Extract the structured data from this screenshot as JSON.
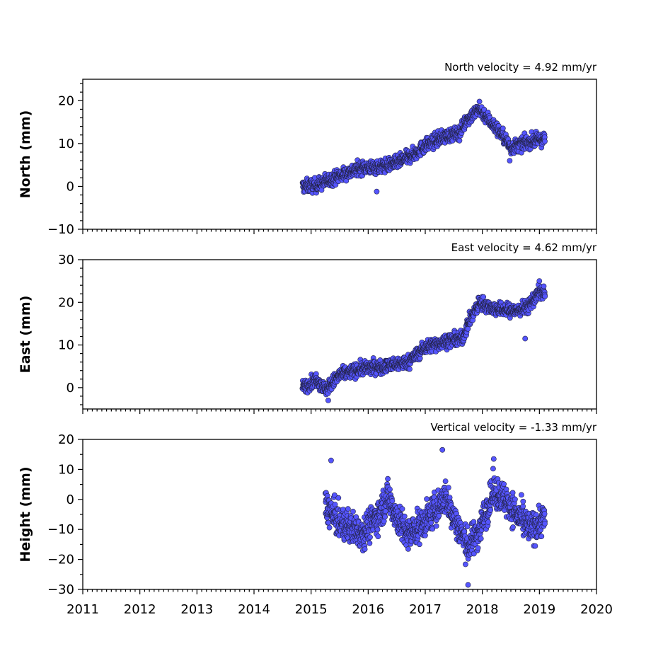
{
  "chart_data": {
    "type": "scatter",
    "x_range": [
      "2011",
      "2020"
    ],
    "x_ticks": [
      "2011",
      "2012",
      "2013",
      "2014",
      "2015",
      "2016",
      "2017",
      "2018",
      "2019",
      "2020"
    ],
    "marker_color": "#5555ff",
    "panels": [
      {
        "id": "north",
        "title": "North velocity = 4.92 mm/yr",
        "ylabel": "North (mm)",
        "ylim": [
          -10,
          25
        ],
        "y_ticks": [
          "−10",
          "0",
          "10",
          "20"
        ],
        "y_tick_values": [
          -10,
          0,
          10,
          20
        ],
        "trend_points": [
          [
            2014.85,
            0
          ],
          [
            2015.1,
            0.3
          ],
          [
            2015.5,
            2.5
          ],
          [
            2015.9,
            4.5
          ],
          [
            2016.2,
            4.5
          ],
          [
            2016.5,
            5.5
          ],
          [
            2016.8,
            7.5
          ],
          [
            2017.0,
            9.5
          ],
          [
            2017.3,
            11.5
          ],
          [
            2017.6,
            12.5
          ],
          [
            2017.72,
            15.5
          ],
          [
            2017.95,
            18
          ],
          [
            2018.15,
            15
          ],
          [
            2018.35,
            12
          ],
          [
            2018.5,
            9
          ],
          [
            2018.7,
            10
          ],
          [
            2019.0,
            11
          ],
          [
            2019.1,
            11
          ]
        ],
        "noise_sd": 1.1,
        "outliers": [
          [
            2016.15,
            -1.2
          ],
          [
            2018.48,
            6
          ],
          [
            2017.95,
            19.8
          ]
        ]
      },
      {
        "id": "east",
        "title": "East velocity = 4.62 mm/yr",
        "ylabel": "East (mm)",
        "ylim": [
          -5,
          30
        ],
        "y_ticks": [
          "0",
          "10",
          "20",
          "30"
        ],
        "y_tick_values": [
          0,
          10,
          20,
          30
        ],
        "trend_points": [
          [
            2014.85,
            0
          ],
          [
            2015.1,
            2
          ],
          [
            2015.25,
            -0.5
          ],
          [
            2015.5,
            3
          ],
          [
            2015.9,
            4.5
          ],
          [
            2016.3,
            5
          ],
          [
            2016.7,
            6
          ],
          [
            2017.0,
            9.5
          ],
          [
            2017.4,
            11
          ],
          [
            2017.65,
            11.5
          ],
          [
            2017.75,
            15
          ],
          [
            2017.95,
            20
          ],
          [
            2018.2,
            18.5
          ],
          [
            2018.6,
            18
          ],
          [
            2018.8,
            19
          ],
          [
            2019.0,
            22.5
          ],
          [
            2019.1,
            22
          ]
        ],
        "noise_sd": 1.1,
        "outliers": [
          [
            2018.75,
            11.5
          ],
          [
            2015.3,
            -3
          ],
          [
            2019.0,
            25
          ]
        ]
      },
      {
        "id": "height",
        "title": "Vertical velocity = -1.33 mm/yr",
        "ylabel": "Height (mm)",
        "ylim": [
          -30,
          20
        ],
        "y_ticks": [
          "−30",
          "−20",
          "−10",
          "0",
          "10",
          "20"
        ],
        "y_tick_values": [
          -30,
          -20,
          -10,
          0,
          10,
          20
        ],
        "trend_points": [
          [
            2015.25,
            -2
          ],
          [
            2015.5,
            -8
          ],
          [
            2015.9,
            -11
          ],
          [
            2016.15,
            -6
          ],
          [
            2016.35,
            1
          ],
          [
            2016.5,
            -6
          ],
          [
            2016.7,
            -12
          ],
          [
            2016.95,
            -8
          ],
          [
            2017.2,
            -3
          ],
          [
            2017.35,
            1
          ],
          [
            2017.5,
            -6
          ],
          [
            2017.75,
            -16
          ],
          [
            2017.95,
            -10
          ],
          [
            2018.2,
            3
          ],
          [
            2018.4,
            0
          ],
          [
            2018.6,
            -5
          ],
          [
            2018.85,
            -10
          ],
          [
            2019.1,
            -6
          ]
        ],
        "noise_sd": 3.8,
        "outliers": [
          [
            2017.3,
            16.5
          ],
          [
            2017.75,
            -28.5
          ],
          [
            2015.35,
            13
          ],
          [
            2018.2,
            13.5
          ]
        ]
      }
    ]
  }
}
